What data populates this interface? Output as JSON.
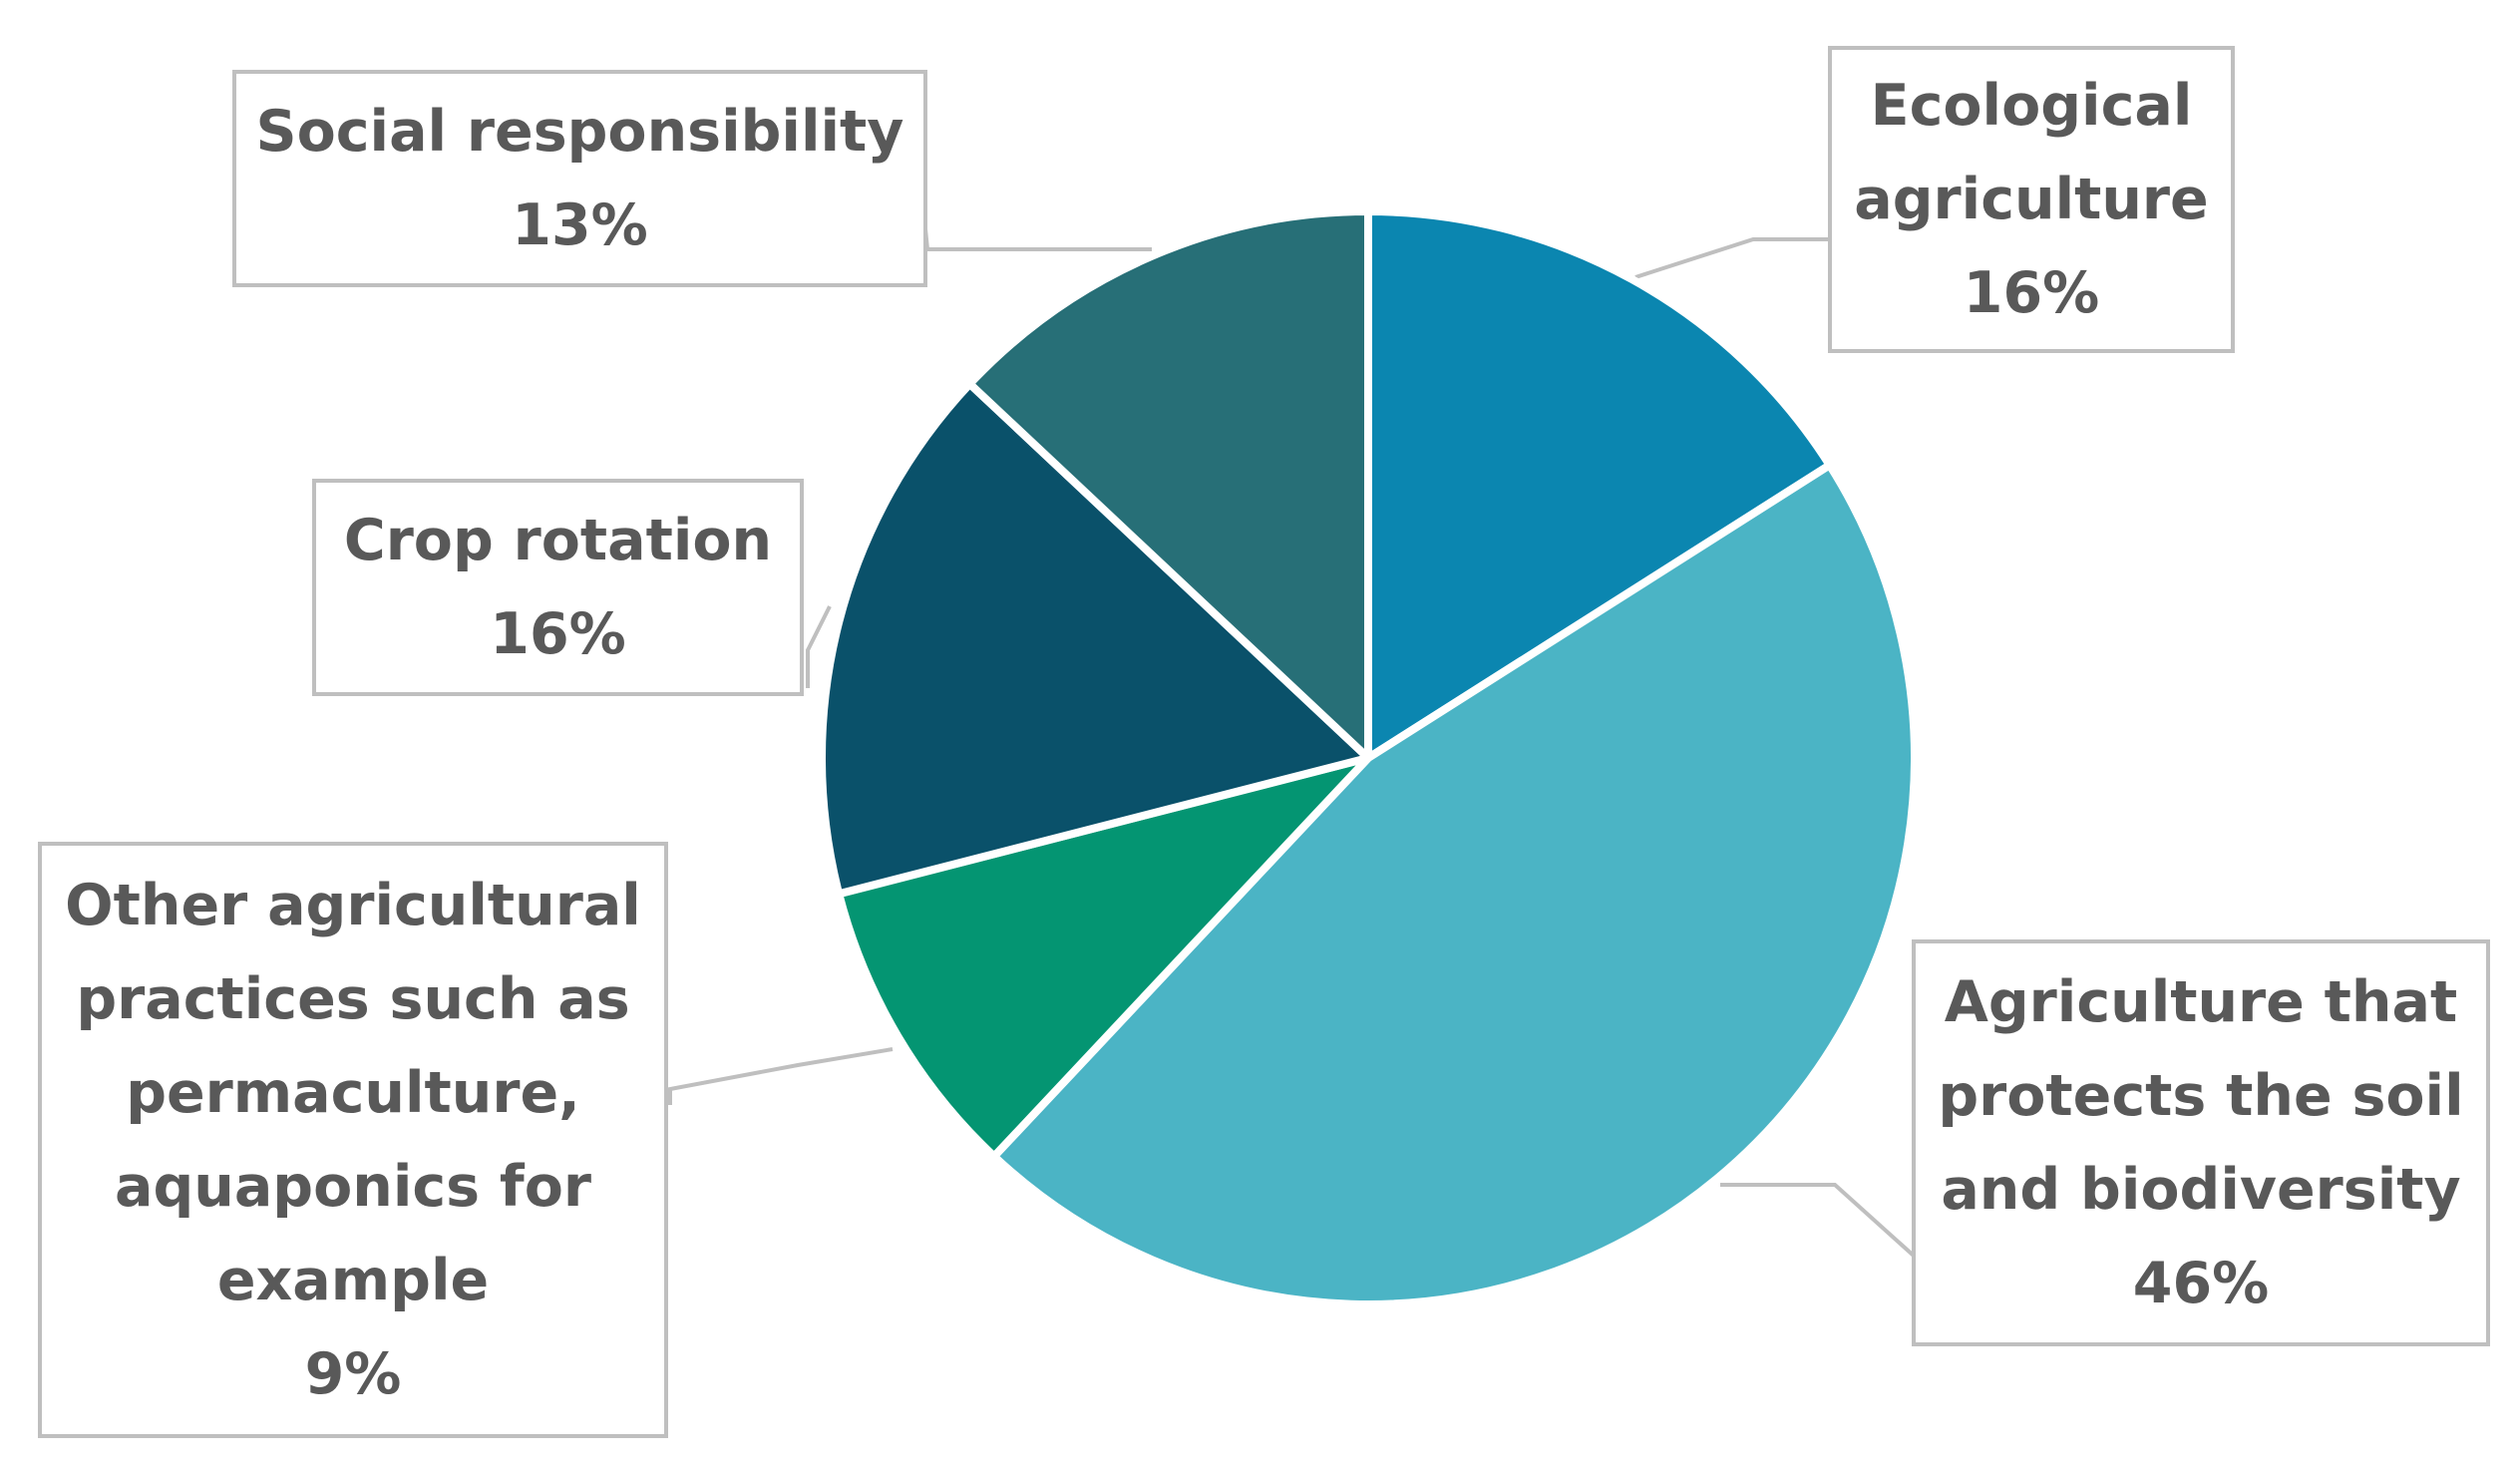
{
  "chart_data": {
    "type": "pie",
    "title": "",
    "start_angle_deg": 0,
    "direction": "clockwise",
    "slices": [
      {
        "key": "ecological",
        "name_lines": [
          "Ecological",
          "agriculture"
        ],
        "value": 16,
        "label": "16%",
        "color": "#0b86b0"
      },
      {
        "key": "protects",
        "name_lines": [
          "Agriculture that",
          "protects the soil",
          "and biodiversity"
        ],
        "value": 46,
        "label": "46%",
        "color": "#4bb4c5"
      },
      {
        "key": "other",
        "name_lines": [
          "Other agricultural",
          "practices such as",
          "permaculture,",
          "aquaponics for",
          "example"
        ],
        "value": 9,
        "label": "9%",
        "color": "#049572"
      },
      {
        "key": "crop",
        "name_lines": [
          "Crop rotation"
        ],
        "value": 16,
        "label": "16%",
        "color": "#0a516a"
      },
      {
        "key": "social",
        "name_lines": [
          "Social responsibility"
        ],
        "value": 13,
        "label": "13%",
        "color": "#276f77"
      }
    ],
    "legend": "none",
    "label_style": "callout-boxes"
  }
}
